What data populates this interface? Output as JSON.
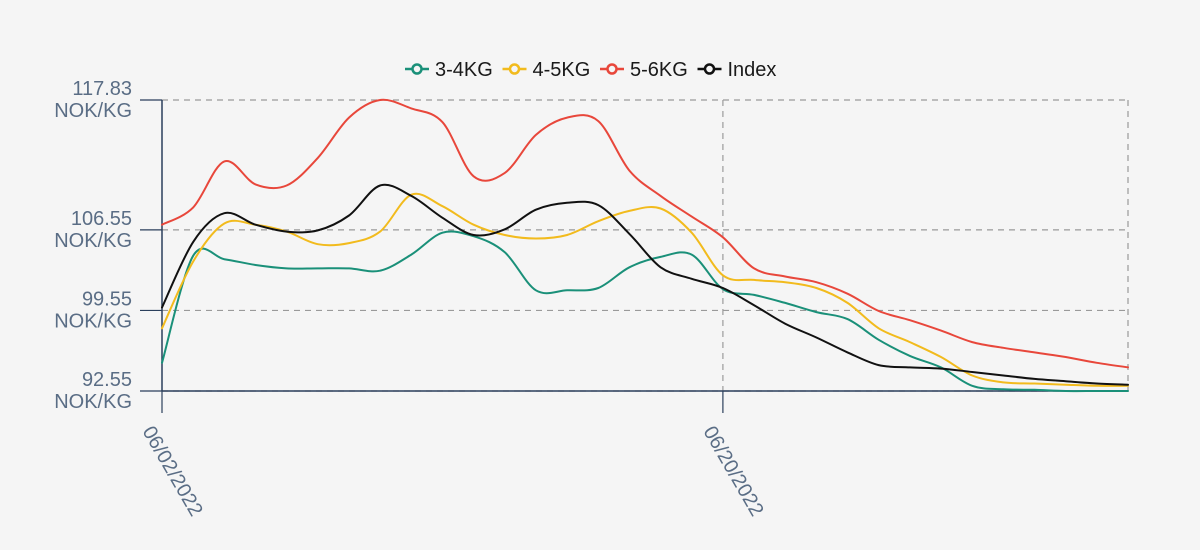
{
  "chart_data": {
    "type": "line",
    "title": "",
    "xlabel": "",
    "ylabel": "",
    "x": [
      "06/02/2022",
      "06/03/2022",
      "06/04/2022",
      "06/05/2022",
      "06/06/2022",
      "06/07/2022",
      "06/08/2022",
      "06/09/2022",
      "06/10/2022",
      "06/11/2022",
      "06/12/2022",
      "06/13/2022",
      "06/14/2022",
      "06/15/2022",
      "06/16/2022",
      "06/17/2022",
      "06/18/2022",
      "06/19/2022",
      "06/20/2022",
      "06/21/2022",
      "06/22/2022",
      "06/23/2022",
      "06/24/2022",
      "06/25/2022",
      "06/26/2022",
      "06/27/2022",
      "06/28/2022",
      "06/29/2022",
      "06/30/2022",
      "07/01/2022",
      "07/02/2022",
      "07/03/2022"
    ],
    "x_ticks": [
      "06/02/2022",
      "06/20/2022"
    ],
    "y_ticks": [
      {
        "value": 92.55,
        "label": "92.55",
        "unit": "NOK/KG"
      },
      {
        "value": 99.55,
        "label": "99.55",
        "unit": "NOK/KG"
      },
      {
        "value": 106.55,
        "label": "106.55",
        "unit": "NOK/KG"
      },
      {
        "value": 117.83,
        "label": "117.83",
        "unit": "NOK/KG"
      }
    ],
    "ylim": [
      92.55,
      117.83
    ],
    "grid": true,
    "legend_position": "top-center",
    "series": [
      {
        "name": "3-4KG",
        "color": "#1a9079",
        "values": [
          95.0,
          104.3,
          104.0,
          103.5,
          103.2,
          103.2,
          103.2,
          103.0,
          104.4,
          106.3,
          106.0,
          104.6,
          101.3,
          101.3,
          101.5,
          103.3,
          104.2,
          104.4,
          101.4,
          100.9,
          100.2,
          99.4,
          98.8,
          97.0,
          95.6,
          94.6,
          93.0,
          92.7,
          92.65,
          92.55,
          92.55,
          92.55
        ]
      },
      {
        "name": "4-5KG",
        "color": "#f2bb1d",
        "values": [
          98.0,
          103.8,
          107.1,
          107.0,
          106.4,
          105.3,
          105.4,
          106.4,
          109.6,
          108.6,
          107.0,
          106.1,
          105.8,
          106.1,
          107.3,
          108.2,
          108.4,
          106.3,
          102.6,
          102.2,
          102.0,
          101.5,
          100.2,
          98.0,
          96.8,
          95.5,
          93.9,
          93.3,
          93.2,
          93.1,
          93.0,
          93.0
        ]
      },
      {
        "name": "5-6KG",
        "color": "#e8473b",
        "values": [
          107.0,
          108.5,
          112.5,
          110.5,
          110.4,
          112.8,
          116.3,
          117.83,
          117.1,
          115.9,
          111.2,
          111.5,
          114.8,
          116.3,
          116.0,
          111.7,
          109.5,
          107.7,
          105.9,
          103.2,
          102.5,
          102.0,
          101.0,
          99.5,
          98.7,
          97.8,
          96.8,
          96.3,
          95.9,
          95.5,
          95.0,
          94.6
        ]
      },
      {
        "name": "Index",
        "color": "#111111",
        "values": [
          99.8,
          105.5,
          108.0,
          107.0,
          106.4,
          106.5,
          107.8,
          110.4,
          109.5,
          107.6,
          106.1,
          106.6,
          108.3,
          108.9,
          108.7,
          106.2,
          103.3,
          102.3,
          101.5,
          100.0,
          98.4,
          97.2,
          95.9,
          94.8,
          94.6,
          94.5,
          94.2,
          93.9,
          93.6,
          93.4,
          93.2,
          93.1
        ]
      }
    ]
  }
}
